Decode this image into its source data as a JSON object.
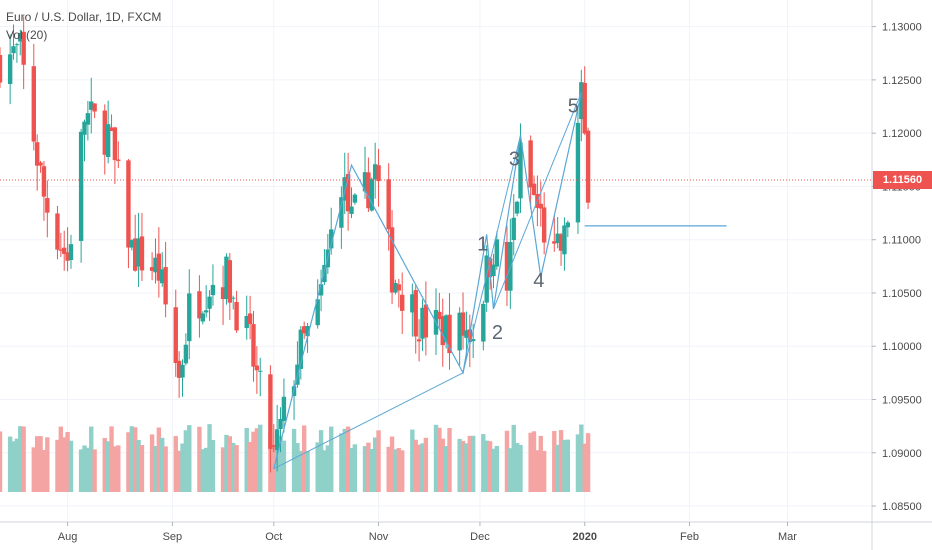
{
  "header": {
    "symbol_line": "Euro / U.S. Dollar, 1D, FXCM",
    "volume_line": "Vol (20)"
  },
  "last_price": "1.11560",
  "colors": {
    "up": "#26a69a",
    "down": "#ef5350",
    "vol_up": "#8fd1c9",
    "vol_down": "#f4a5a3",
    "wave": "#5aa7d6",
    "price_line": "#ef5350",
    "grid": "#f0f3fa"
  },
  "chart_data": {
    "type": "candlestick",
    "y_axis": {
      "ticks": [
        "1.13000",
        "1.12500",
        "1.12000",
        "1.11500",
        "1.11000",
        "1.10500",
        "1.10000",
        "1.09500",
        "1.09000",
        "1.08500"
      ],
      "tick_values": [
        1.13,
        1.125,
        1.12,
        1.115,
        1.11,
        1.105,
        1.1,
        1.095,
        1.09,
        1.085
      ],
      "ylim": [
        1.0835,
        1.1325
      ]
    },
    "x_axis": {
      "ticks": [
        "Aug",
        "Sep",
        "Oct",
        "Nov",
        "Dec",
        "2020",
        "Feb",
        "Mar"
      ],
      "tick_dates": [
        "2019-08-01",
        "2019-09-01",
        "2019-10-01",
        "2019-11-01",
        "2019-12-01",
        "2020-01-01",
        "2020-02-01",
        "2020-03-01"
      ],
      "bold": [
        "2020"
      ],
      "xlim": [
        "2019-07-12",
        "2020-03-26"
      ]
    },
    "candles_summary": {
      "start": "2019-07-12",
      "end": "2020-01-02",
      "points": [
        [
          "2019-07-12",
          1.127
        ],
        [
          "2019-07-18",
          1.1275
        ],
        [
          "2019-07-25",
          1.114
        ],
        [
          "2019-08-01",
          1.108
        ],
        [
          "2019-08-06",
          1.1215
        ],
        [
          "2019-08-13",
          1.12
        ],
        [
          "2019-08-20",
          1.109
        ],
        [
          "2019-08-28",
          1.107
        ],
        [
          "2019-09-03",
          1.097
        ],
        [
          "2019-09-06",
          1.1035
        ],
        [
          "2019-09-12",
          1.106
        ],
        [
          "2019-09-17",
          1.1065
        ],
        [
          "2019-09-24",
          1.1
        ],
        [
          "2019-10-01",
          1.0895
        ],
        [
          "2019-10-08",
          1.099
        ],
        [
          "2019-10-14",
          1.103
        ],
        [
          "2019-10-21",
          1.116
        ],
        [
          "2019-10-24",
          1.1115
        ],
        [
          "2019-10-31",
          1.1165
        ],
        [
          "2019-11-05",
          1.107
        ],
        [
          "2019-11-14",
          1.102
        ],
        [
          "2019-11-22",
          1.1015
        ],
        [
          "2019-11-29",
          1.1015
        ],
        [
          "2019-12-05",
          1.1095
        ],
        [
          "2019-12-09",
          1.1055
        ],
        [
          "2019-12-13",
          1.1175
        ],
        [
          "2019-12-19",
          1.112
        ],
        [
          "2019-12-23",
          1.108
        ],
        [
          "2019-12-26",
          1.1098
        ],
        [
          "2019-12-31",
          1.123
        ],
        [
          "2020-01-02",
          1.1156
        ]
      ]
    },
    "wave_pattern": {
      "labels": [
        "1",
        "2",
        "3",
        "4",
        "5"
      ],
      "points": [
        [
          "2019-10-01",
          1.0885
        ],
        [
          "2019-10-24",
          1.117
        ],
        [
          "2019-11-26",
          1.0975
        ],
        [
          "2019-12-03",
          1.1105
        ],
        [
          "2019-12-05",
          1.1035
        ],
        [
          "2019-12-13",
          1.1198
        ],
        [
          "2019-12-19",
          1.1065
        ],
        [
          "2019-12-31",
          1.1238
        ]
      ]
    },
    "horizontal_ray": {
      "start": "2020-01-01",
      "end": "2020-02-12",
      "value": 1.1113
    },
    "current_price_line": 1.1156,
    "volume": {
      "label": "Vol (20)"
    }
  }
}
